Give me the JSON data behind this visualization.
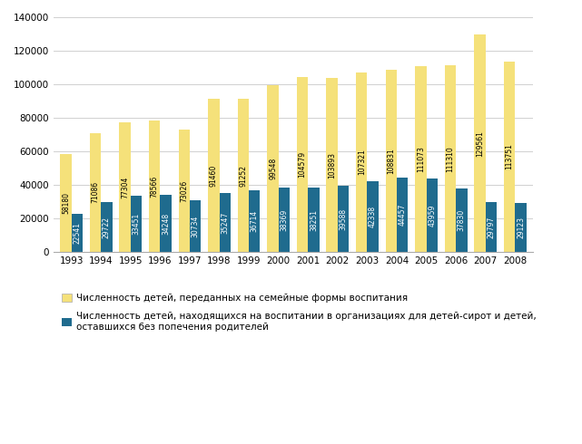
{
  "years": [
    1993,
    1994,
    1995,
    1996,
    1997,
    1998,
    1999,
    2000,
    2001,
    2002,
    2003,
    2004,
    2005,
    2006,
    2007,
    2008
  ],
  "yellow_values": [
    58180,
    71086,
    77304,
    78566,
    73026,
    91460,
    91252,
    99548,
    104579,
    103893,
    107321,
    108831,
    111073,
    111310,
    129561,
    113751
  ],
  "blue_values": [
    22541,
    29722,
    33451,
    34248,
    30734,
    35247,
    36714,
    38369,
    38251,
    39588,
    42338,
    44457,
    43959,
    37830,
    29797,
    29123
  ],
  "yellow_color": "#F5E17A",
  "blue_color": "#1F6B8E",
  "ylim": [
    0,
    140000
  ],
  "yticks": [
    0,
    20000,
    40000,
    60000,
    80000,
    100000,
    120000,
    140000
  ],
  "legend_yellow": "Численность детей, переданных на семейные формы воспитания",
  "legend_blue": "Численность детей, находящихся на воспитании в организациях для детей-сирот и детей,\nоставшихся без попечения родителей",
  "bar_width": 0.38,
  "label_fontsize": 5.5,
  "axis_fontsize": 7.5,
  "legend_fontsize": 7.5,
  "background_color": "#FFFFFF",
  "grid_color": "#D0D0D0"
}
